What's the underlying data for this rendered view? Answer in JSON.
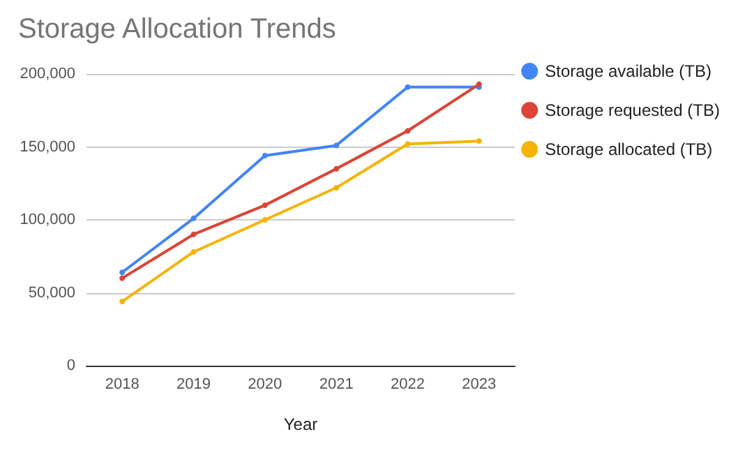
{
  "chart_data": {
    "type": "line",
    "title": "Storage Allocation Trends",
    "xlabel": "Year",
    "categories": [
      "2018",
      "2019",
      "2020",
      "2021",
      "2022",
      "2023"
    ],
    "series": [
      {
        "name": "Storage available (TB)",
        "color": "#4285f4",
        "values": [
          64000,
          101000,
          144000,
          151000,
          191000,
          191000
        ]
      },
      {
        "name": "Storage requested (TB)",
        "color": "#db4437",
        "values": [
          60000,
          90000,
          110000,
          135000,
          161000,
          193000
        ]
      },
      {
        "name": "Storage allocated (TB)",
        "color": "#f4b400",
        "values": [
          44000,
          78000,
          100000,
          122000,
          152000,
          154000
        ]
      }
    ],
    "ylim": [
      0,
      200000
    ],
    "yticks": [
      {
        "value": 0,
        "label": "0"
      },
      {
        "value": 50000,
        "label": "50,000"
      },
      {
        "value": 100000,
        "label": "100,000"
      },
      {
        "value": 150000,
        "label": "150,000"
      },
      {
        "value": 200000,
        "label": "200,000"
      }
    ],
    "grid": "y",
    "legend": "right",
    "marker": "circle",
    "line_style": "solid"
  }
}
